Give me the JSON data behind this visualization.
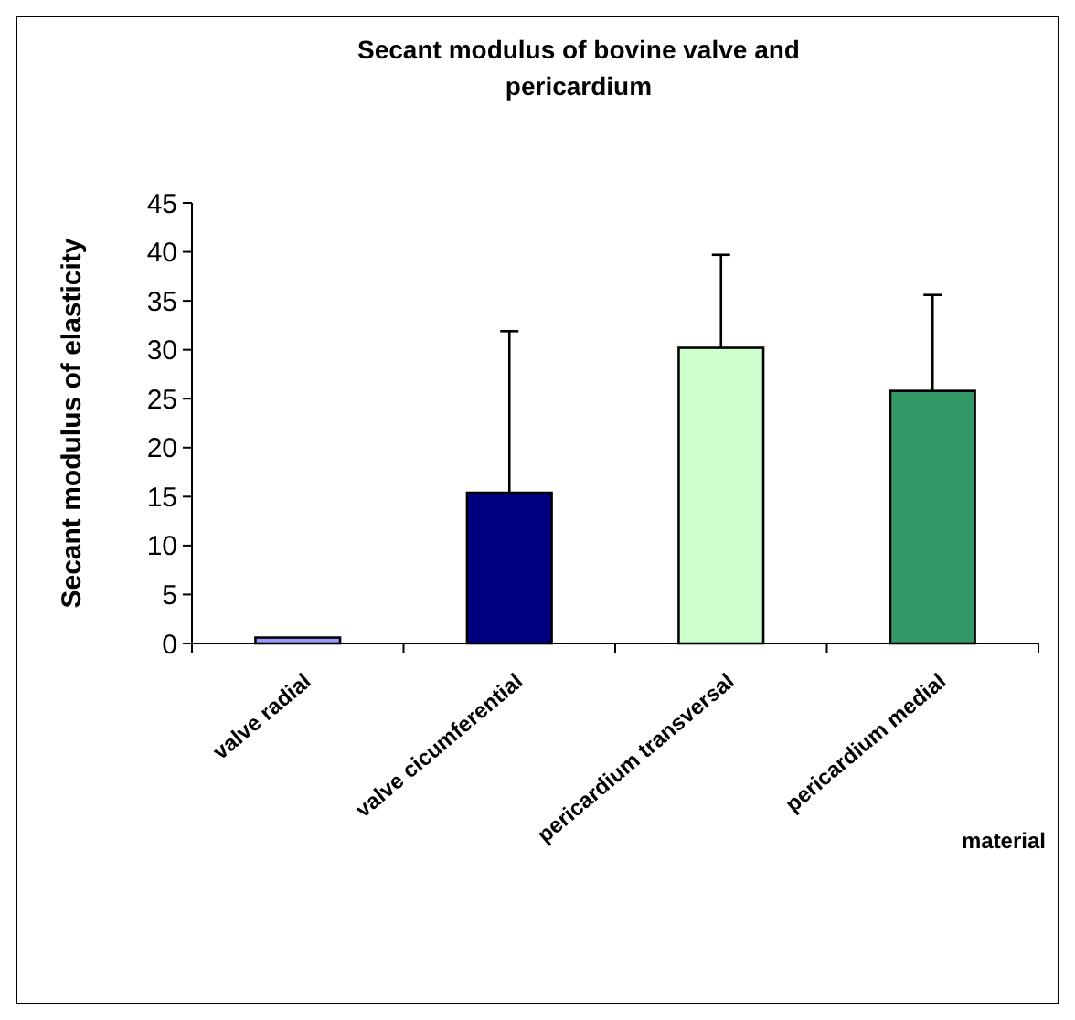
{
  "chart_data": {
    "type": "bar",
    "title": "Secant modulus of bovine valve and pericardium",
    "xlabel": "material",
    "ylabel": "Secant modulus of elasticity",
    "categories": [
      "valve radial",
      "valve cicumferential",
      "pericardium transversal",
      "pericardium medial"
    ],
    "values": [
      0.6,
      15.4,
      30.2,
      25.8
    ],
    "colors": [
      "#9999ff",
      "#000080",
      "#ccffcc",
      "#339966"
    ],
    "errors": [
      null,
      [
        15.4,
        31.9
      ],
      [
        30.2,
        39.7
      ],
      [
        25.8,
        35.6
      ]
    ],
    "ylim": [
      0,
      45
    ],
    "yticks": [
      0,
      5,
      10,
      15,
      20,
      25,
      30,
      35,
      40,
      45
    ],
    "grid": false
  }
}
